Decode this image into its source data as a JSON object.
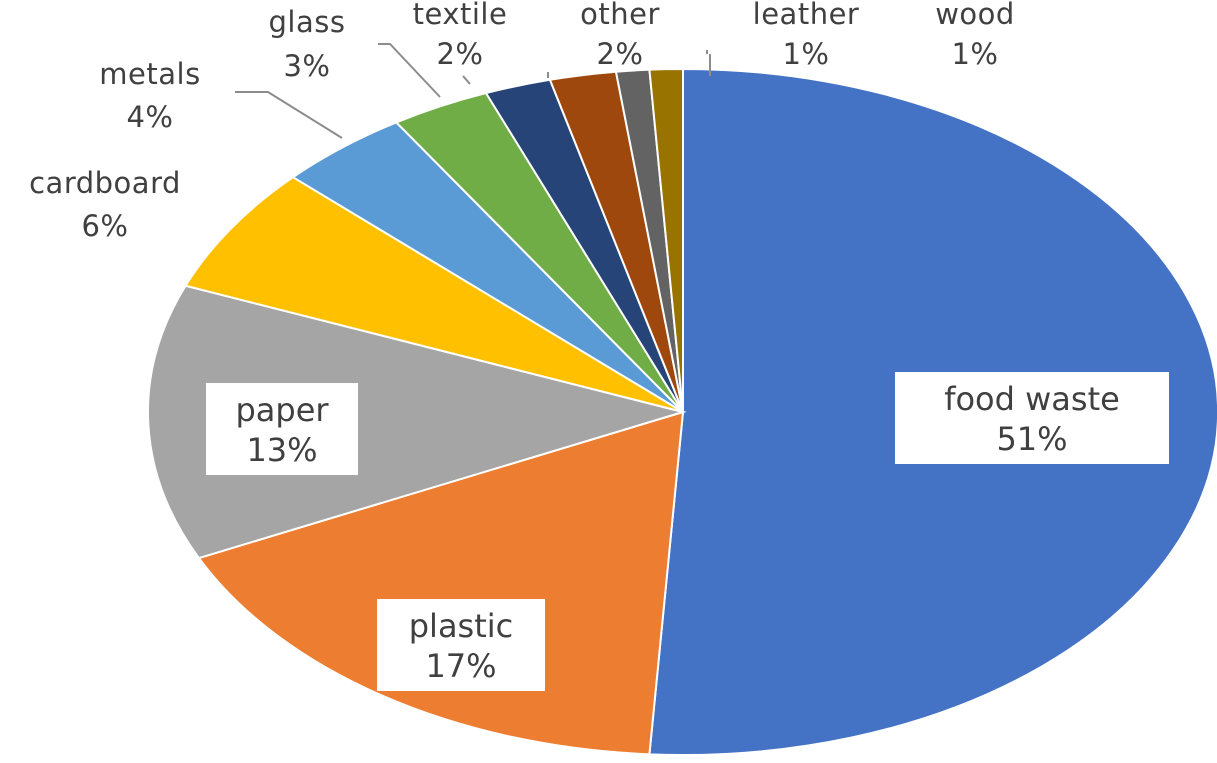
{
  "chart_data": {
    "type": "pie",
    "title": "",
    "slices": [
      {
        "name": "food waste",
        "value": 51,
        "label": "51%",
        "color": "#4472c4"
      },
      {
        "name": "plastic",
        "value": 17,
        "label": "17%",
        "color": "#ed7d31"
      },
      {
        "name": "paper",
        "value": 13,
        "label": "13%",
        "color": "#a5a5a5"
      },
      {
        "name": "cardboard",
        "value": 6,
        "label": "6%",
        "color": "#ffc000"
      },
      {
        "name": "metals",
        "value": 4,
        "label": "4%",
        "color": "#5b9bd5"
      },
      {
        "name": "glass",
        "value": 3,
        "label": "3%",
        "color": "#70ad47"
      },
      {
        "name": "textile",
        "value": 2,
        "label": "2%",
        "color": "#264478"
      },
      {
        "name": "other",
        "value": 2,
        "label": "2%",
        "color": "#9e480e"
      },
      {
        "name": "leather",
        "value": 1,
        "label": "1%",
        "color": "#636363"
      },
      {
        "name": "wood",
        "value": 1,
        "label": "1%",
        "color": "#997300"
      }
    ],
    "legend": "none"
  }
}
